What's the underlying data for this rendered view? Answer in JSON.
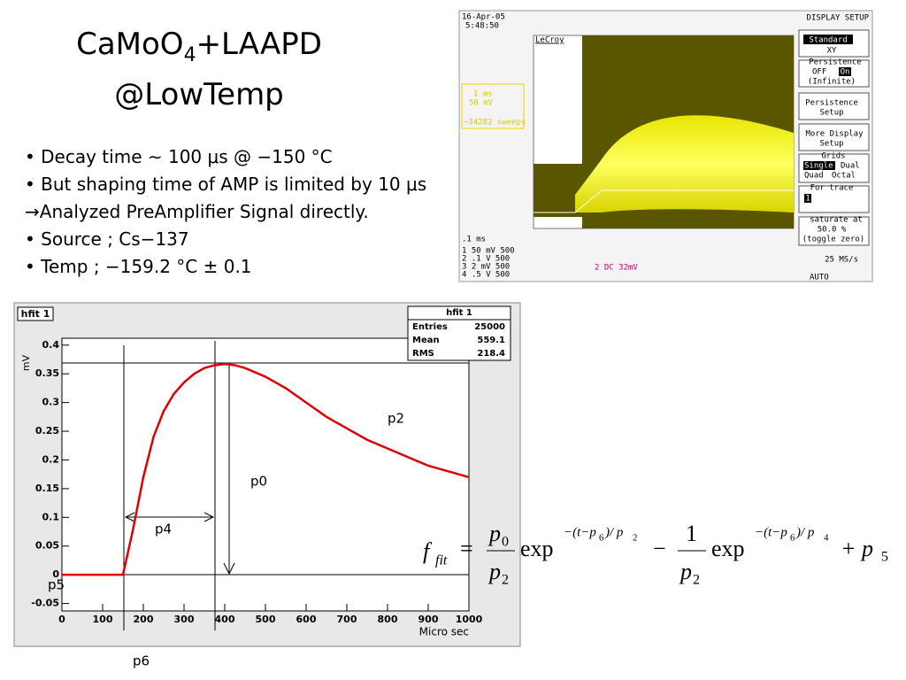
{
  "title": {
    "base": "CaMoO",
    "sub": "4",
    "rest": "+LAAPD",
    "line2": "@LowTemp"
  },
  "bullets": [
    "Decay time ∼ 100 μs @ −150 °C",
    "But shaping time of AMP is limited by 10 μs",
    "Analyzed PreAmplifier Signal directly.",
    "Source ; Cs−137",
    "Temp ; −159.2 °C ± 0.1"
  ],
  "bullet_arrow": "→",
  "scope": {
    "date": "16-Apr-05",
    "time": "5:48:50",
    "header": "DISPLAY SETUP",
    "brand": "LeCroy",
    "menu": [
      "Standard",
      "XY",
      "Persistence",
      "OFF",
      "On",
      "(Infinite)",
      "Persistence",
      "Setup",
      "More Display",
      "Setup",
      "Grids",
      "Single",
      "Dual",
      "Quad",
      "Octal",
      "For trace",
      "1",
      "saturate at",
      "50.0 %",
      "(toggle zero)"
    ],
    "trace_info": [
      "1 ms",
      "50 mV",
      "−34282 sweeps"
    ],
    "timebase": ".1 ms",
    "channels": [
      "1  50 mV  500",
      "2  .1  V  500",
      "3   2 mV  500",
      "4  .5  V  500"
    ],
    "trigger": "2 DC 32mV",
    "sample_rate": "25 MS/s",
    "mode": "AUTO"
  },
  "plot": {
    "type": "line",
    "title": "hfit 1",
    "y_label": "mV",
    "x_label": "Micro sec",
    "stats": {
      "title": "hfit 1",
      "rows": [
        [
          "Entries",
          "25000"
        ],
        [
          "Mean",
          "559.1"
        ],
        [
          "RMS",
          "218.4"
        ]
      ]
    },
    "xlim": [
      0,
      1000
    ],
    "ylim": [
      -0.063,
      0.412
    ],
    "xticks": [
      0,
      100,
      200,
      300,
      400,
      500,
      600,
      700,
      800,
      900,
      1000
    ],
    "yticks": [
      -0.05,
      0,
      0.05,
      0.1,
      0.15,
      0.2,
      0.25,
      0.3,
      0.35,
      0.4
    ],
    "series": [
      {
        "name": "fit",
        "color": "#e00000",
        "x": [
          0,
          50,
          100,
          150,
          175,
          200,
          225,
          250,
          275,
          300,
          325,
          350,
          375,
          400,
          425,
          450,
          500,
          550,
          600,
          650,
          700,
          750,
          800,
          850,
          900,
          950,
          1000
        ],
        "values": [
          0,
          0,
          0,
          0,
          0.08,
          0.17,
          0.24,
          0.285,
          0.315,
          0.335,
          0.35,
          0.36,
          0.365,
          0.367,
          0.365,
          0.36,
          0.345,
          0.325,
          0.3,
          0.275,
          0.255,
          0.235,
          0.22,
          0.205,
          0.19,
          0.18,
          0.17
        ]
      }
    ],
    "annotations": [
      "p2",
      "p0",
      "p4",
      "p5",
      "p6"
    ]
  },
  "formula": [
    "f",
    "fit",
    "=",
    "p",
    "0",
    "p",
    "2",
    "exp",
    "−(t−p",
    "6",
    ")/ p",
    "2",
    "−",
    "1",
    "p",
    "2",
    "exp",
    "−(t−p",
    "6",
    ")/ p",
    "4",
    "+ p",
    "5"
  ]
}
